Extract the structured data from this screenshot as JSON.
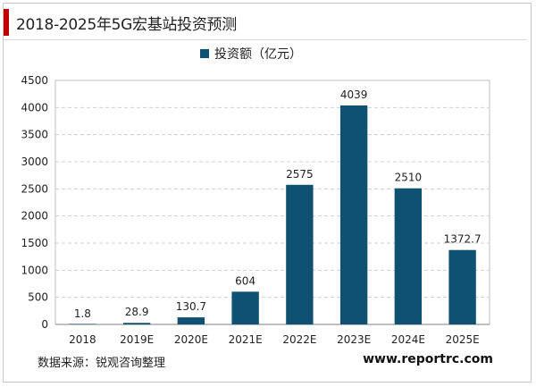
{
  "title": "2018-2025年5G宏基站投资预测",
  "source": "数据来源：锐观咨询整理",
  "website": "www.reportrc.com",
  "colors": {
    "bar": "#0e5170",
    "accent": "#c00000",
    "grid": "#d0d0d0"
  },
  "chart_data": {
    "type": "bar",
    "categories": [
      "2018",
      "2019E",
      "2020E",
      "2021E",
      "2022E",
      "2023E",
      "2024E",
      "2025E"
    ],
    "series": [
      {
        "name": "投资额（亿元）",
        "values": [
          1.8,
          28.9,
          130.7,
          604,
          2575,
          4039,
          2510,
          1372.7
        ]
      }
    ],
    "value_labels": [
      "1.8",
      "28.9",
      "130.7",
      "604",
      "2575",
      "4039",
      "2510",
      "1372.7"
    ],
    "ylim": [
      0,
      4500
    ],
    "yticks": [
      0,
      500,
      1000,
      1500,
      2000,
      2500,
      3000,
      3500,
      4000,
      4500
    ],
    "grid": true,
    "legend": "top-center",
    "xlabel": "",
    "ylabel": ""
  }
}
